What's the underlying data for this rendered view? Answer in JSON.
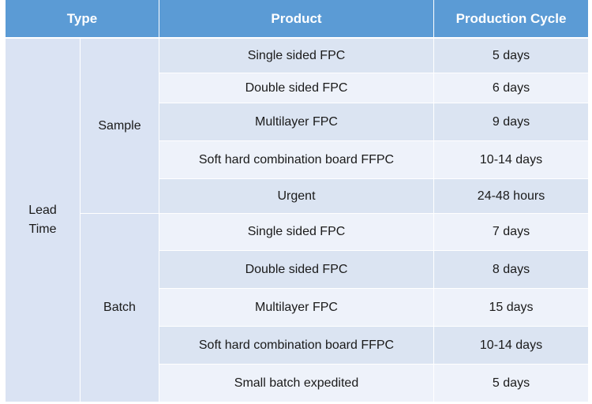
{
  "header": {
    "type": "Type",
    "product": "Product",
    "cycle": "Production Cycle"
  },
  "lead_time": "Lead\nTime",
  "groups": {
    "sample": "Sample",
    "batch": "Batch"
  },
  "rows": [
    {
      "product": "Single sided FPC",
      "cycle": "5 days"
    },
    {
      "product": "Double sided FPC",
      "cycle": "6 days"
    },
    {
      "product": "Multilayer FPC",
      "cycle": "9 days"
    },
    {
      "product": "Soft hard combination board FFPC",
      "cycle": "10-14 days"
    },
    {
      "product": "Urgent",
      "cycle": "24-48 hours"
    },
    {
      "product": "Single sided FPC",
      "cycle": "7 days"
    },
    {
      "product": "Double sided FPC",
      "cycle": "8 days"
    },
    {
      "product": "Multilayer FPC",
      "cycle": "15 days"
    },
    {
      "product": "Soft hard combination board FFPC",
      "cycle": "10-14 days"
    },
    {
      "product": "Small batch expedited",
      "cycle": "5 days"
    }
  ],
  "colors": {
    "header_bg": "#5b9bd5",
    "row_dark": "#dbe4f2",
    "row_light": "#eef2fa",
    "side_bg": "#dae3f3"
  }
}
